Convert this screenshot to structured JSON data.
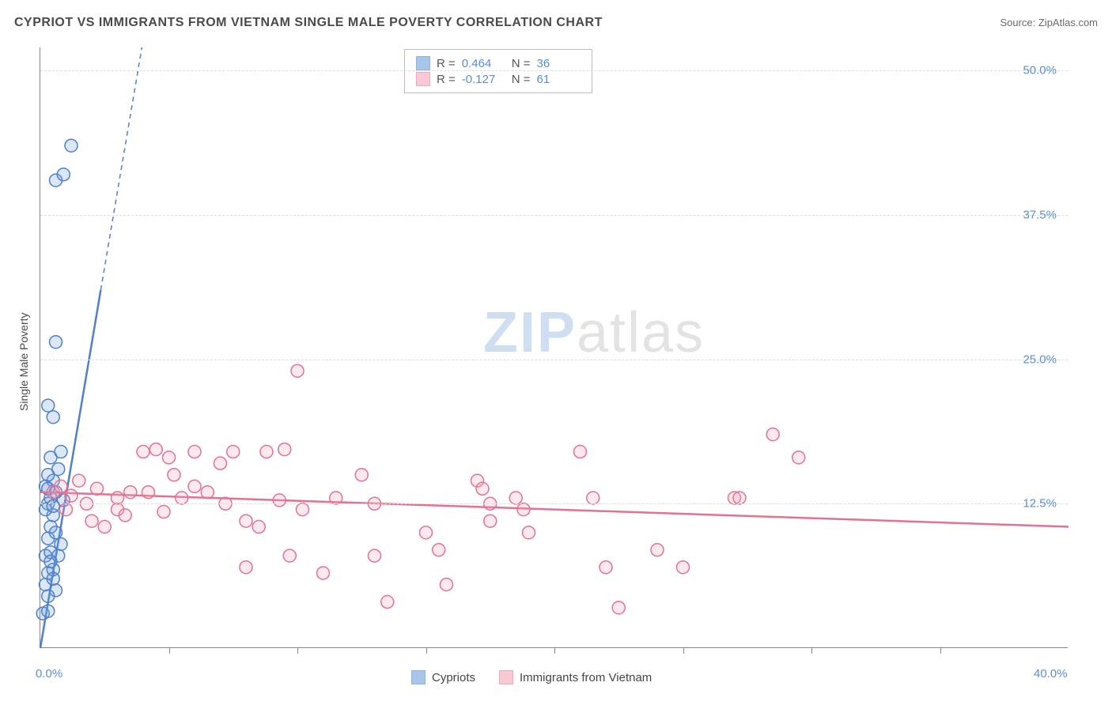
{
  "title": "CYPRIOT VS IMMIGRANTS FROM VIETNAM SINGLE MALE POVERTY CORRELATION CHART",
  "source_label": "Source: ZipAtlas.com",
  "y_axis_label": "Single Male Poverty",
  "watermark": {
    "part1": "ZIP",
    "part2": "atlas"
  },
  "chart": {
    "type": "scatter",
    "background_color": "#ffffff",
    "grid_color": "#dcdcdc",
    "axis_color": "#888888",
    "text_color": "#4a4a4a",
    "tick_label_color": "#5b8dd6",
    "xlim": [
      0,
      40
    ],
    "ylim": [
      0,
      52
    ],
    "x_ticks_minor": [
      5,
      10,
      15,
      20,
      25,
      30,
      35
    ],
    "x_tick_labels": [
      {
        "v": 0,
        "label": "0.0%"
      },
      {
        "v": 40,
        "label": "40.0%"
      }
    ],
    "y_tick_labels": [
      {
        "v": 12.5,
        "label": "12.5%"
      },
      {
        "v": 25.0,
        "label": "25.0%"
      },
      {
        "v": 37.5,
        "label": "37.5%"
      },
      {
        "v": 50.0,
        "label": "50.0%"
      }
    ],
    "y_gridlines": [
      12.5,
      25.0,
      37.5,
      50.0
    ],
    "marker_radius": 8,
    "marker_stroke_width": 1.5,
    "marker_fill_opacity": 0.25,
    "trend_line_width": 2.5,
    "trend_dash_width": 1.5,
    "series": [
      {
        "id": "cypriots",
        "label": "Cypriots",
        "color": "#6fa0e0",
        "stroke": "#4f80c8",
        "r_value": "0.464",
        "n_value": "36",
        "trend_solid": {
          "x1": 0.0,
          "y1": 0.0,
          "x2": 2.35,
          "y2": 31.0
        },
        "trend_dashed": {
          "x1": 2.35,
          "y1": 31.0,
          "x2": 3.95,
          "y2": 52.0
        },
        "points": [
          [
            0.1,
            3.0
          ],
          [
            0.3,
            3.2
          ],
          [
            0.2,
            5.5
          ],
          [
            0.6,
            5.0
          ],
          [
            0.3,
            6.5
          ],
          [
            0.5,
            6.8
          ],
          [
            0.2,
            8.0
          ],
          [
            0.4,
            8.3
          ],
          [
            0.7,
            8.0
          ],
          [
            0.3,
            9.5
          ],
          [
            0.8,
            9.0
          ],
          [
            0.4,
            10.5
          ],
          [
            0.5,
            11.5
          ],
          [
            0.3,
            12.5
          ],
          [
            0.9,
            12.8
          ],
          [
            0.4,
            13.0
          ],
          [
            0.6,
            13.5
          ],
          [
            0.2,
            14.0
          ],
          [
            0.5,
            14.5
          ],
          [
            0.3,
            15.0
          ],
          [
            0.7,
            15.5
          ],
          [
            0.4,
            16.5
          ],
          [
            0.8,
            17.0
          ],
          [
            0.5,
            20.0
          ],
          [
            0.3,
            21.0
          ],
          [
            0.6,
            26.5
          ],
          [
            0.6,
            40.5
          ],
          [
            0.9,
            41.0
          ],
          [
            1.2,
            43.5
          ],
          [
            0.2,
            12.0
          ],
          [
            0.3,
            13.8
          ],
          [
            0.5,
            12.3
          ],
          [
            0.4,
            7.5
          ],
          [
            0.6,
            10.0
          ],
          [
            0.3,
            4.5
          ],
          [
            0.5,
            6.0
          ]
        ]
      },
      {
        "id": "vietnam",
        "label": "Immigrants from Vietnam",
        "color": "#f3a6b9",
        "stroke": "#e4718f",
        "r_value": "-0.127",
        "n_value": "61",
        "trend_solid": {
          "x1": 0.0,
          "y1": 13.5,
          "x2": 40.0,
          "y2": 10.5
        },
        "trend_dashed": null,
        "points": [
          [
            0.5,
            13.5
          ],
          [
            0.8,
            14.0
          ],
          [
            1.0,
            12.0
          ],
          [
            1.2,
            13.2
          ],
          [
            1.5,
            14.5
          ],
          [
            1.8,
            12.5
          ],
          [
            2.0,
            11.0
          ],
          [
            2.2,
            13.8
          ],
          [
            2.5,
            10.5
          ],
          [
            3.0,
            12.0
          ],
          [
            3.0,
            13.0
          ],
          [
            3.3,
            11.5
          ],
          [
            3.5,
            13.5
          ],
          [
            4.0,
            17.0
          ],
          [
            4.5,
            17.2
          ],
          [
            4.8,
            11.8
          ],
          [
            5.0,
            16.5
          ],
          [
            5.2,
            15.0
          ],
          [
            5.5,
            13.0
          ],
          [
            6.0,
            17.0
          ],
          [
            6.5,
            13.5
          ],
          [
            7.0,
            16.0
          ],
          [
            7.2,
            12.5
          ],
          [
            7.5,
            17.0
          ],
          [
            8.0,
            11.0
          ],
          [
            8.0,
            7.0
          ],
          [
            8.5,
            10.5
          ],
          [
            8.8,
            17.0
          ],
          [
            9.3,
            12.8
          ],
          [
            9.5,
            17.2
          ],
          [
            9.7,
            8.0
          ],
          [
            10.0,
            24.0
          ],
          [
            10.2,
            12.0
          ],
          [
            11.0,
            6.5
          ],
          [
            11.5,
            13.0
          ],
          [
            12.5,
            15.0
          ],
          [
            13.0,
            8.0
          ],
          [
            13.0,
            12.5
          ],
          [
            13.5,
            4.0
          ],
          [
            15.0,
            10.0
          ],
          [
            15.5,
            8.5
          ],
          [
            15.8,
            5.5
          ],
          [
            17.0,
            14.5
          ],
          [
            17.2,
            13.8
          ],
          [
            17.5,
            12.5
          ],
          [
            18.8,
            12.0
          ],
          [
            18.5,
            13.0
          ],
          [
            19.0,
            10.0
          ],
          [
            21.0,
            17.0
          ],
          [
            21.5,
            13.0
          ],
          [
            22.0,
            7.0
          ],
          [
            22.5,
            3.5
          ],
          [
            24.0,
            8.5
          ],
          [
            25.0,
            7.0
          ],
          [
            27.0,
            13.0
          ],
          [
            27.2,
            13.0
          ],
          [
            28.5,
            18.5
          ],
          [
            29.5,
            16.5
          ],
          [
            17.5,
            11.0
          ],
          [
            6.0,
            14.0
          ],
          [
            4.2,
            13.5
          ]
        ]
      }
    ]
  },
  "legend_top": {
    "r_label": "R =",
    "n_label": "N ="
  },
  "legend_bottom_labels": {
    "cypriots": "Cypriots",
    "vietnam": "Immigrants from Vietnam"
  }
}
